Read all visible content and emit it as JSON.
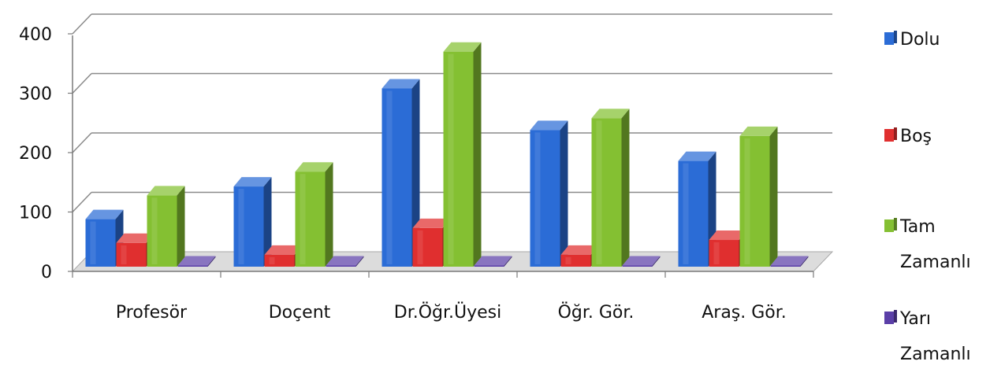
{
  "chart_data": {
    "type": "bar",
    "title": "",
    "xlabel": "",
    "ylabel": "",
    "ylim": [
      0,
      400
    ],
    "yticks": [
      0,
      100,
      200,
      300,
      400
    ],
    "categories": [
      "Profesör",
      "Doçent",
      "Dr.Öğr.Üyesi",
      "Öğr. Gör.",
      "Araş. Gör."
    ],
    "series": [
      {
        "name": "Dolu",
        "color": "#2b6cd6",
        "values": [
          80,
          135,
          300,
          230,
          178
        ]
      },
      {
        "name": "Boş",
        "color": "#e02f2f",
        "values": [
          40,
          20,
          65,
          20,
          45
        ]
      },
      {
        "name": "Tam Zamanlı",
        "color": "#84c032",
        "values": [
          120,
          160,
          362,
          250,
          220
        ]
      },
      {
        "name": "Yarı Zamanlı",
        "color": "#5b3fa8",
        "values": [
          0,
          0,
          0,
          0,
          0
        ]
      }
    ],
    "grid": true,
    "legend": "right"
  }
}
